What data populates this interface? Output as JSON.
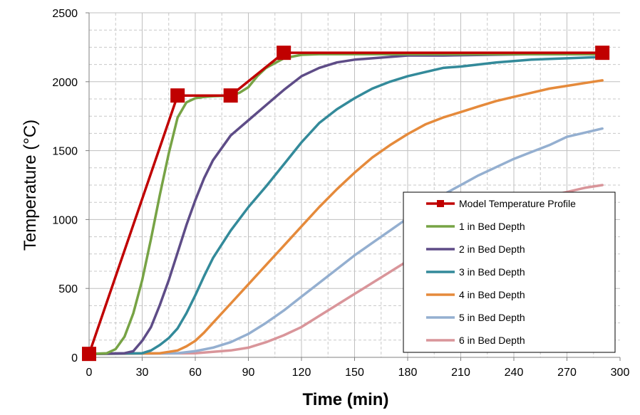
{
  "chart_data": {
    "type": "line",
    "xlabel": "Time (min)",
    "ylabel": "Temperature (°C)",
    "xlim": [
      0,
      300
    ],
    "ylim": [
      0,
      2500
    ],
    "x_ticks": [
      "0",
      "30",
      "60",
      "90",
      "120",
      "150",
      "180",
      "210",
      "240",
      "270",
      "300"
    ],
    "y_ticks": [
      "0",
      "500",
      "1000",
      "1500",
      "2000",
      "2500"
    ],
    "grid": "major solid, minor dashed",
    "legend_position": "bottom-right",
    "series": [
      {
        "name": "Model Temperature Profile",
        "color": "#c00000",
        "marker": "square",
        "x": [
          0,
          50,
          80,
          110,
          290
        ],
        "y": [
          25,
          1900,
          1900,
          2210,
          2210
        ]
      },
      {
        "name": "1 in Bed Depth",
        "color": "#77a345",
        "x": [
          0,
          10,
          15,
          20,
          25,
          30,
          35,
          40,
          45,
          50,
          55,
          60,
          65,
          70,
          80,
          85,
          90,
          95,
          100,
          110,
          120,
          130,
          150,
          200,
          250,
          290
        ],
        "y": [
          25,
          30,
          60,
          150,
          320,
          560,
          860,
          1180,
          1480,
          1740,
          1850,
          1880,
          1890,
          1895,
          1900,
          1920,
          1960,
          2040,
          2100,
          2170,
          2195,
          2200,
          2200,
          2200,
          2200,
          2200
        ]
      },
      {
        "name": "2 in Bed Depth",
        "color": "#5e4c87",
        "x": [
          0,
          20,
          25,
          30,
          35,
          40,
          45,
          50,
          55,
          60,
          65,
          70,
          80,
          90,
          100,
          110,
          120,
          130,
          140,
          150,
          160,
          180,
          200,
          250,
          290
        ],
        "y": [
          25,
          30,
          45,
          120,
          220,
          380,
          560,
          760,
          960,
          1140,
          1300,
          1430,
          1610,
          1720,
          1830,
          1940,
          2040,
          2100,
          2140,
          2160,
          2170,
          2190,
          2190,
          2200,
          2200
        ]
      },
      {
        "name": "3 in Bed Depth",
        "color": "#338a9a",
        "x": [
          0,
          30,
          35,
          40,
          45,
          50,
          55,
          60,
          65,
          70,
          80,
          90,
          100,
          110,
          120,
          130,
          140,
          150,
          160,
          170,
          180,
          190,
          200,
          210,
          230,
          250,
          270,
          290
        ],
        "y": [
          25,
          30,
          50,
          90,
          140,
          210,
          320,
          450,
          590,
          720,
          920,
          1090,
          1240,
          1400,
          1560,
          1700,
          1800,
          1880,
          1950,
          2000,
          2040,
          2070,
          2100,
          2110,
          2140,
          2160,
          2170,
          2180
        ]
      },
      {
        "name": "4 in Bed Depth",
        "color": "#e58a3b",
        "x": [
          0,
          40,
          50,
          55,
          60,
          65,
          70,
          80,
          90,
          100,
          110,
          120,
          130,
          140,
          150,
          160,
          170,
          180,
          190,
          200,
          210,
          220,
          230,
          240,
          250,
          260,
          270,
          280,
          290
        ],
        "y": [
          25,
          30,
          50,
          80,
          120,
          180,
          250,
          390,
          530,
          670,
          810,
          950,
          1090,
          1220,
          1340,
          1450,
          1540,
          1620,
          1690,
          1740,
          1780,
          1820,
          1860,
          1890,
          1920,
          1950,
          1970,
          1990,
          2010
        ]
      },
      {
        "name": "5 in Bed Depth",
        "color": "#94afd0",
        "x": [
          0,
          50,
          60,
          70,
          80,
          90,
          100,
          110,
          120,
          130,
          140,
          150,
          160,
          170,
          180,
          190,
          200,
          210,
          220,
          230,
          240,
          250,
          260,
          270,
          280,
          290
        ],
        "y": [
          25,
          30,
          45,
          70,
          110,
          170,
          250,
          340,
          440,
          540,
          640,
          740,
          830,
          920,
          1010,
          1100,
          1180,
          1250,
          1320,
          1380,
          1440,
          1490,
          1540,
          1600,
          1630,
          1660
        ]
      },
      {
        "name": "6 in Bed Depth",
        "color": "#d9959a",
        "x": [
          0,
          60,
          70,
          80,
          85,
          90,
          100,
          110,
          120,
          130,
          140,
          150,
          160,
          170,
          180,
          190,
          200,
          210,
          220,
          230,
          240,
          250,
          260,
          270,
          280,
          290
        ],
        "y": [
          25,
          30,
          40,
          50,
          60,
          70,
          110,
          160,
          220,
          300,
          380,
          460,
          540,
          620,
          700,
          780,
          850,
          920,
          980,
          1030,
          1080,
          1120,
          1170,
          1200,
          1230,
          1250
        ]
      }
    ]
  }
}
